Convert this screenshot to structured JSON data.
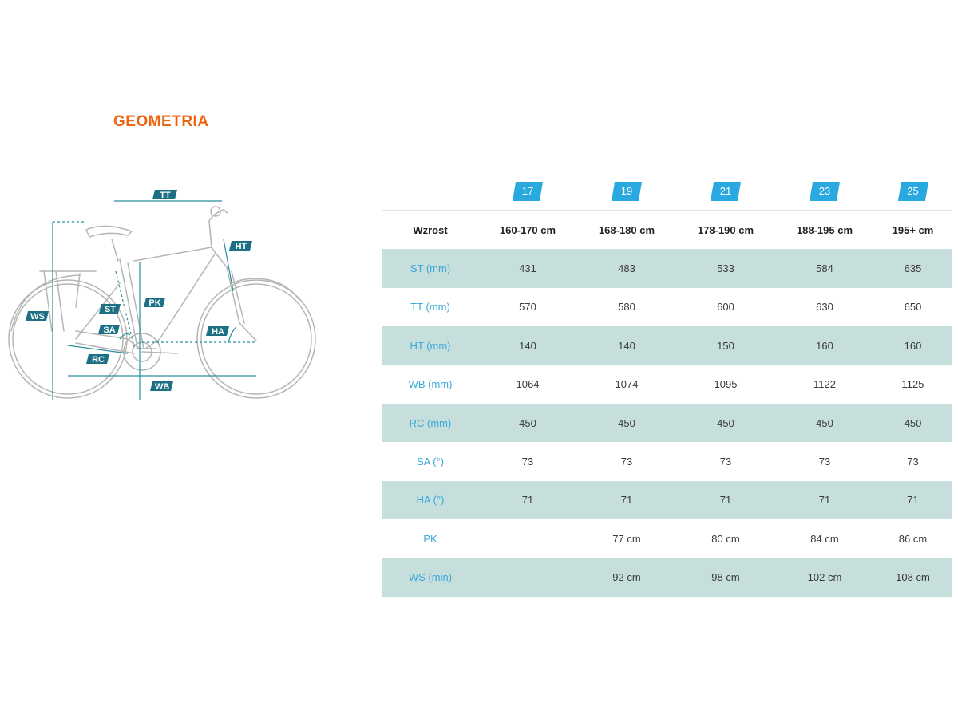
{
  "title": "GEOMETRIA",
  "diagram": {
    "labels": {
      "tt": "TT",
      "ht": "HT",
      "ws": "WS",
      "st": "ST",
      "pk": "PK",
      "sa": "SA",
      "ha": "HA",
      "rc": "RC",
      "wb": "WB"
    },
    "colors": {
      "bike": "#b5b5b5",
      "accent": "#2a8fa1",
      "tag": "#1d6f84"
    }
  },
  "table": {
    "sizes": [
      "17",
      "19",
      "21",
      "23",
      "25"
    ],
    "rows": [
      {
        "label": "Wzrost",
        "values": [
          "160-170 cm",
          "168-180 cm",
          "178-190 cm",
          "188-195 cm",
          "195+ cm"
        ]
      },
      {
        "label": "ST (mm)",
        "values": [
          "431",
          "483",
          "533",
          "584",
          "635"
        ]
      },
      {
        "label": "TT (mm)",
        "values": [
          "570",
          "580",
          "600",
          "630",
          "650"
        ]
      },
      {
        "label": "HT (mm)",
        "values": [
          "140",
          "140",
          "150",
          "160",
          "160"
        ]
      },
      {
        "label": "WB (mm)",
        "values": [
          "1064",
          "1074",
          "1095",
          "1122",
          "1125"
        ]
      },
      {
        "label": "RC (mm)",
        "values": [
          "450",
          "450",
          "450",
          "450",
          "450"
        ]
      },
      {
        "label": "SA (°)",
        "values": [
          "73",
          "73",
          "73",
          "73",
          "73"
        ]
      },
      {
        "label": "HA (°)",
        "values": [
          "71",
          "71",
          "71",
          "71",
          "71"
        ]
      },
      {
        "label": "PK",
        "values": [
          "",
          "77 cm",
          "80 cm",
          "84 cm",
          "86 cm"
        ]
      },
      {
        "label": "WS (min)",
        "values": [
          "",
          "92 cm",
          "98 cm",
          "102 cm",
          "108 cm"
        ]
      }
    ],
    "colors": {
      "badge": "#29a9df",
      "label": "#3aa8d8",
      "shade": "#c6dfdc"
    }
  }
}
